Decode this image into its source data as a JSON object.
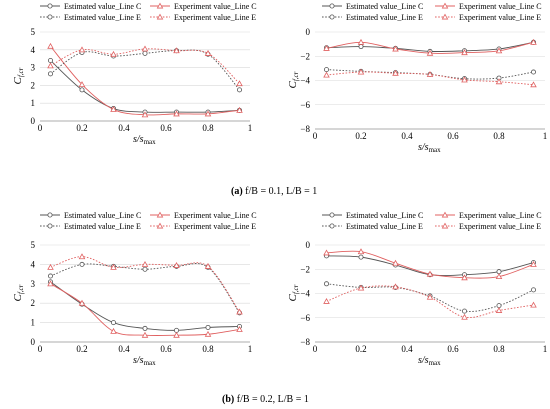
{
  "colors": {
    "estimated": "#555555",
    "experiment": "#e06060",
    "axis": "#999999",
    "grid": "#d9d9d9"
  },
  "chart_data": [
    {
      "type": "line",
      "panel": "a-left",
      "xlim": [
        0,
        1
      ],
      "ylim": [
        0,
        5
      ],
      "xticks": [
        "0",
        "0.2",
        "0.4",
        "0.6",
        "0.8",
        "1"
      ],
      "yticks": [
        "0",
        "1",
        "2",
        "3",
        "4",
        "5"
      ],
      "grid": "horizontal",
      "legend_position": "top",
      "series": [
        {
          "name": "Estimated value_Line C",
          "x": [
            0.05,
            0.2,
            0.35,
            0.5,
            0.65,
            0.8,
            0.95
          ],
          "y": [
            3.4,
            1.75,
            0.7,
            0.5,
            0.5,
            0.5,
            0.6
          ],
          "style": "est-solid"
        },
        {
          "name": "Experiment value_Line C",
          "x": [
            0.05,
            0.2,
            0.35,
            0.5,
            0.65,
            0.8,
            0.95
          ],
          "y": [
            4.2,
            2.05,
            0.65,
            0.35,
            0.4,
            0.4,
            0.6
          ],
          "style": "exp-solid"
        },
        {
          "name": "Estimated value_Line E",
          "x": [
            0.05,
            0.2,
            0.35,
            0.5,
            0.65,
            0.8,
            0.95
          ],
          "y": [
            2.65,
            3.85,
            3.65,
            3.8,
            3.95,
            3.75,
            1.75
          ],
          "style": "est-dot"
        },
        {
          "name": "Experiment value_Line E",
          "x": [
            0.05,
            0.2,
            0.35,
            0.5,
            0.65,
            0.8,
            0.95
          ],
          "y": [
            3.1,
            4.0,
            3.75,
            4.05,
            3.95,
            3.8,
            2.1
          ],
          "style": "exp-dot"
        }
      ]
    },
    {
      "type": "line",
      "panel": "a-right",
      "xlim": [
        0,
        1
      ],
      "ylim": [
        -8,
        0
      ],
      "xticks": [
        "0",
        "0.2",
        "0.4",
        "0.6",
        "0.8",
        "1"
      ],
      "yticks": [
        "0",
        "−2",
        "−4",
        "−6",
        "−8"
      ],
      "grid": "horizontal",
      "legend_position": "top",
      "series": [
        {
          "name": "Estimated value_Line C",
          "x": [
            0.05,
            0.2,
            0.35,
            0.5,
            0.65,
            0.8,
            0.95
          ],
          "y": [
            -1.3,
            -1.2,
            -1.35,
            -1.6,
            -1.55,
            -1.4,
            -0.85
          ],
          "style": "est-solid"
        },
        {
          "name": "Experiment value_Line C",
          "x": [
            0.05,
            0.2,
            0.35,
            0.5,
            0.65,
            0.8,
            0.95
          ],
          "y": [
            -1.35,
            -0.85,
            -1.4,
            -1.75,
            -1.7,
            -1.55,
            -0.85
          ],
          "style": "exp-solid"
        },
        {
          "name": "Estimated value_Line E",
          "x": [
            0.05,
            0.2,
            0.35,
            0.5,
            0.65,
            0.8,
            0.95
          ],
          "y": [
            -3.1,
            -3.25,
            -3.35,
            -3.5,
            -3.85,
            -3.8,
            -3.3
          ],
          "style": "est-dot"
        },
        {
          "name": "Experiment value_Line E",
          "x": [
            0.05,
            0.2,
            0.35,
            0.5,
            0.65,
            0.8,
            0.95
          ],
          "y": [
            -3.55,
            -3.3,
            -3.4,
            -3.5,
            -3.95,
            -4.1,
            -4.35
          ],
          "style": "exp-dot"
        }
      ]
    },
    {
      "type": "line",
      "panel": "b-left",
      "xlim": [
        0,
        1
      ],
      "ylim": [
        0,
        5
      ],
      "xticks": [
        "0",
        "0.2",
        "0.4",
        "0.6",
        "0.8",
        "1"
      ],
      "yticks": [
        "0",
        "1",
        "2",
        "3",
        "4",
        "5"
      ],
      "grid": "horizontal",
      "legend_position": "top",
      "series": [
        {
          "name": "Estimated value_Line C",
          "x": [
            0.05,
            0.2,
            0.35,
            0.5,
            0.65,
            0.8,
            0.95
          ],
          "y": [
            3.1,
            1.95,
            1.0,
            0.7,
            0.6,
            0.75,
            0.8
          ],
          "style": "est-solid"
        },
        {
          "name": "Experiment value_Line C",
          "x": [
            0.05,
            0.2,
            0.35,
            0.5,
            0.65,
            0.8,
            0.95
          ],
          "y": [
            3.0,
            2.0,
            0.55,
            0.35,
            0.35,
            0.4,
            0.65
          ],
          "style": "exp-solid"
        },
        {
          "name": "Estimated value_Line E",
          "x": [
            0.05,
            0.2,
            0.35,
            0.5,
            0.65,
            0.8,
            0.95
          ],
          "y": [
            3.4,
            4.0,
            3.9,
            3.75,
            3.9,
            3.85,
            1.5
          ],
          "style": "est-dot"
        },
        {
          "name": "Experiment value_Line E",
          "x": [
            0.05,
            0.2,
            0.35,
            0.5,
            0.65,
            0.8,
            0.95
          ],
          "y": [
            3.85,
            4.4,
            3.85,
            4.0,
            3.95,
            3.9,
            1.55
          ],
          "style": "exp-dot"
        }
      ]
    },
    {
      "type": "line",
      "panel": "b-right",
      "xlim": [
        0,
        1
      ],
      "ylim": [
        -8,
        0
      ],
      "xticks": [
        "0",
        "0.2",
        "0.4",
        "0.6",
        "0.8",
        "1"
      ],
      "yticks": [
        "0",
        "−2",
        "−4",
        "−6",
        "−8"
      ],
      "grid": "horizontal",
      "legend_position": "top",
      "series": [
        {
          "name": "Estimated value_Line C",
          "x": [
            0.05,
            0.2,
            0.35,
            0.5,
            0.65,
            0.8,
            0.95
          ],
          "y": [
            -0.9,
            -1.0,
            -1.65,
            -2.45,
            -2.45,
            -2.2,
            -1.45
          ],
          "style": "est-solid"
        },
        {
          "name": "Experiment value_Line C",
          "x": [
            0.05,
            0.2,
            0.35,
            0.5,
            0.65,
            0.8,
            0.95
          ],
          "y": [
            -0.65,
            -0.55,
            -1.5,
            -2.4,
            -2.7,
            -2.6,
            -1.6
          ],
          "style": "exp-solid"
        },
        {
          "name": "Estimated value_Line E",
          "x": [
            0.05,
            0.2,
            0.35,
            0.5,
            0.65,
            0.8,
            0.95
          ],
          "y": [
            -3.2,
            -3.5,
            -3.5,
            -4.2,
            -5.45,
            -5.0,
            -3.7
          ],
          "style": "est-dot"
        },
        {
          "name": "Experiment value_Line E",
          "x": [
            0.05,
            0.2,
            0.35,
            0.5,
            0.65,
            0.8,
            0.95
          ],
          "y": [
            -4.65,
            -3.55,
            -3.45,
            -4.3,
            -5.95,
            -5.4,
            -4.95
          ],
          "style": "exp-dot"
        }
      ]
    }
  ],
  "axes": {
    "ylabel_main": "C",
    "ylabel_sub": "f,cr",
    "xlabel_main": "s/s",
    "xlabel_sub": "max"
  },
  "captions": {
    "a_label": "(a)",
    "a_text": " f/B = 0.1, L/B = 1",
    "b_label": "(b)",
    "b_text": " f/B = 0.2, L/B = 1"
  }
}
